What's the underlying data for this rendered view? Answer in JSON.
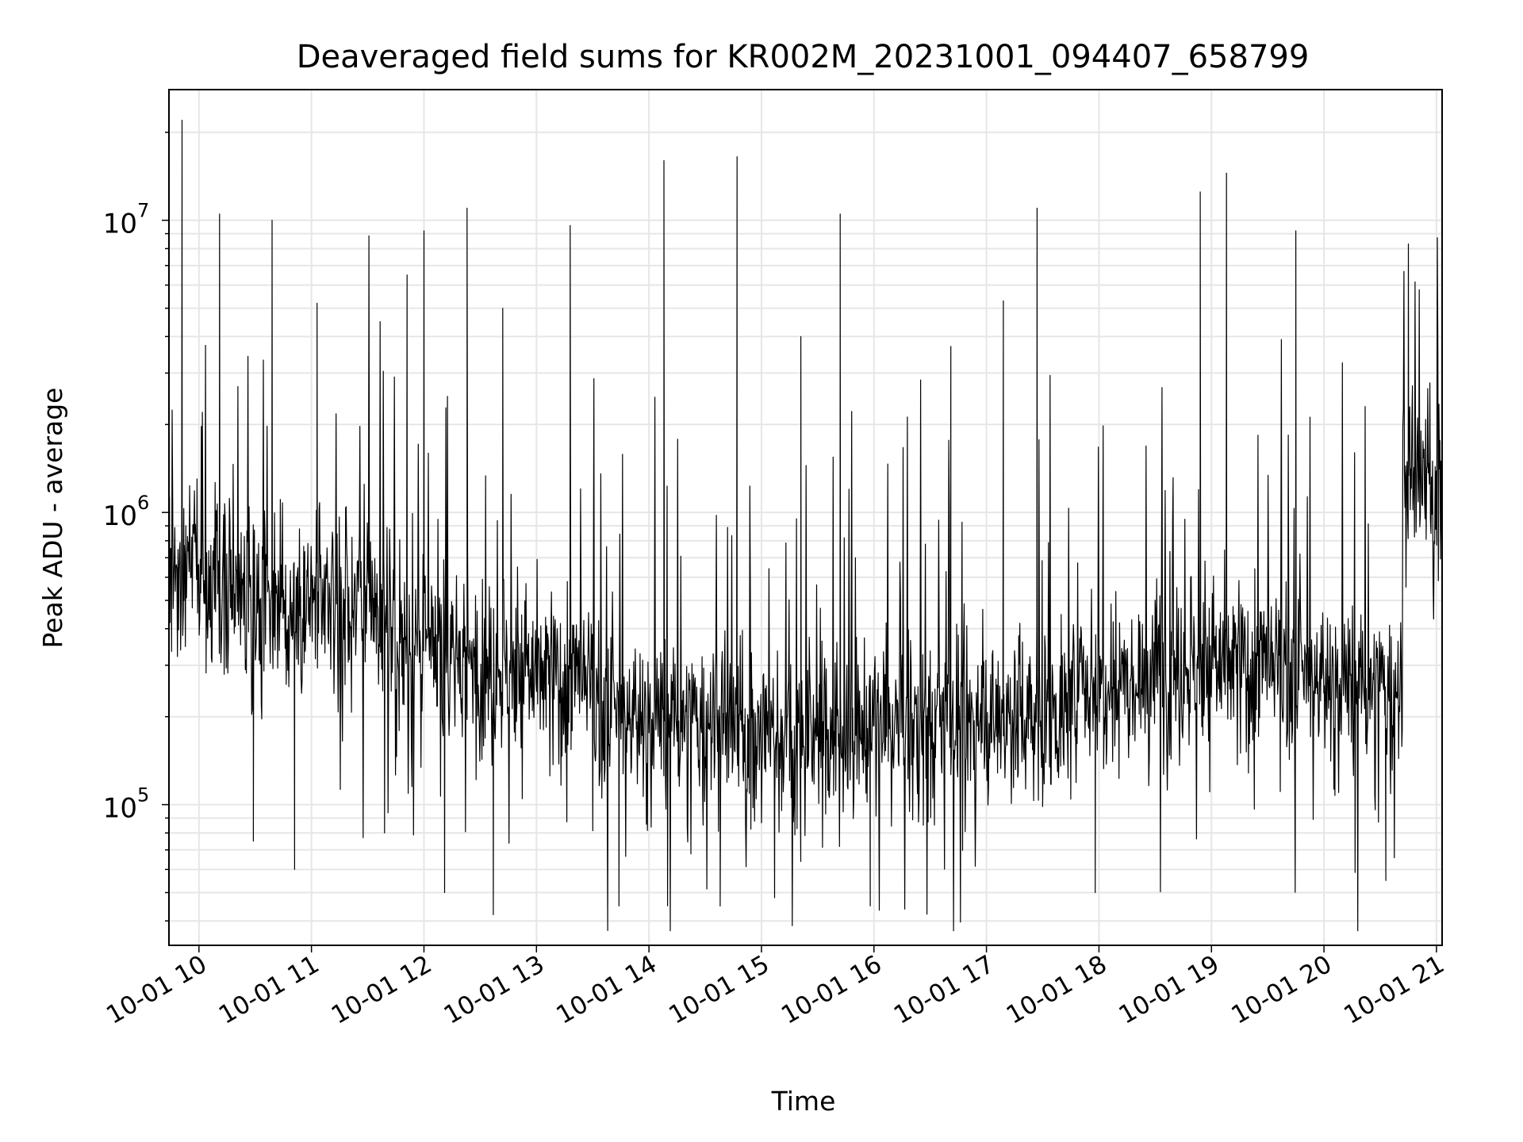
{
  "chart_data": {
    "type": "line",
    "title": "Deaveraged field sums for KR002M_20231001_094407_658799",
    "xlabel": "Time",
    "ylabel": "Peak ADU - average",
    "yscale": "log",
    "grid": true,
    "line_color": "#000000",
    "grid_color": "#e6e6e6",
    "xlim": [
      "2023-10-01 09:44",
      "2023-10-01 21:03"
    ],
    "ylim": [
      33000,
      28000000
    ],
    "xticks": [
      {
        "label": "10-01 10",
        "hour": 10
      },
      {
        "label": "10-01 11",
        "hour": 11
      },
      {
        "label": "10-01 12",
        "hour": 12
      },
      {
        "label": "10-01 13",
        "hour": 13
      },
      {
        "label": "10-01 14",
        "hour": 14
      },
      {
        "label": "10-01 15",
        "hour": 15
      },
      {
        "label": "10-01 16",
        "hour": 16
      },
      {
        "label": "10-01 17",
        "hour": 17
      },
      {
        "label": "10-01 18",
        "hour": 18
      },
      {
        "label": "10-01 19",
        "hour": 19
      },
      {
        "label": "10-01 20",
        "hour": 20
      },
      {
        "label": "10-01 21",
        "hour": 21
      }
    ],
    "yticks": [
      {
        "base": "10",
        "exp": "5",
        "value": 100000
      },
      {
        "base": "10",
        "exp": "6",
        "value": 1000000
      },
      {
        "base": "10",
        "exp": "7",
        "value": 10000000
      }
    ],
    "series": [
      {
        "x": [
          "2023-10-01 09:44",
          "2023-10-01 09:51",
          "2023-10-01 09:52",
          "2023-10-01 09:53",
          "2023-10-01 10:11",
          "2023-10-01 10:29",
          "2023-10-01 10:39",
          "2023-10-01 10:51",
          "2023-10-01 11:03",
          "2023-10-01 11:39",
          "2023-10-01 11:51",
          "2023-10-01 12:00",
          "2023-10-01 12:11",
          "2023-10-01 12:23",
          "2023-10-01 12:37",
          "2023-10-01 12:42",
          "2023-10-01 13:18",
          "2023-10-01 13:44",
          "2023-10-01 14:08",
          "2023-10-01 14:38",
          "2023-10-01 14:47",
          "2023-10-01 15:07",
          "2023-10-01 15:21",
          "2023-10-01 15:42",
          "2023-10-01 15:58",
          "2023-10-01 16:41",
          "2023-10-01 17:09",
          "2023-10-01 17:27",
          "2023-10-01 17:58",
          "2023-10-01 18:54",
          "2023-10-01 19:08",
          "2023-10-01 19:45",
          "2023-10-01 20:33",
          "2023-10-01 20:45",
          "2023-10-01 21:00",
          "2023-10-01 21:03"
        ],
        "values": [
          600000,
          22000000,
          500000,
          900000,
          10500000,
          75000,
          10000000,
          60000,
          5200000,
          80000,
          6500000,
          9200000,
          50000,
          11000000,
          42000,
          5000000,
          9600000,
          45000,
          16000000,
          45000,
          16500000,
          48000,
          4000000,
          10500000,
          45000,
          3700000,
          5300000,
          11000000,
          50000,
          12500000,
          14500000,
          9200000,
          55000,
          8300000,
          1300000,
          9800000
        ]
      }
    ]
  }
}
